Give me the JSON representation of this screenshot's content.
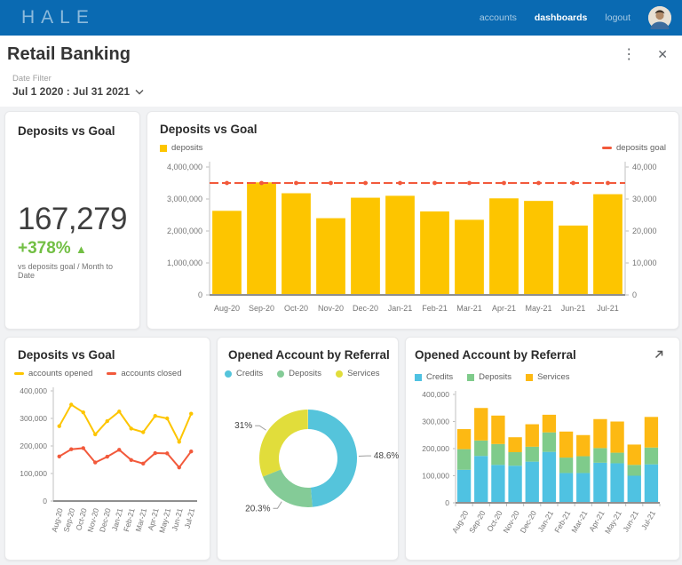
{
  "header": {
    "logo": "HALE",
    "nav": [
      {
        "label": "accounts",
        "active": false
      },
      {
        "label": "dashboards",
        "active": true
      },
      {
        "label": "logout",
        "active": false
      }
    ]
  },
  "page": {
    "title": "Retail Banking"
  },
  "filter": {
    "label": "Date Filter",
    "value": "Jul 1 2020 : Jul 31 2021"
  },
  "kpi": {
    "title": "Deposits vs Goal",
    "value": "167,279",
    "delta": "+378%",
    "delta_symbol": "▲",
    "delta_color": "#72BF44",
    "caption": "vs deposits goal / Month to Date"
  },
  "chart_data": [
    {
      "id": "deposits_bar",
      "type": "bar",
      "title": "Deposits vs Goal",
      "legend_layout": "split",
      "categories": [
        "Aug-20",
        "Sep-20",
        "Oct-20",
        "Nov-20",
        "Dec-20",
        "Jan-21",
        "Feb-21",
        "Mar-21",
        "Apr-21",
        "May-21",
        "Jun-21",
        "Jul-21"
      ],
      "series": [
        {
          "name": "deposits",
          "type": "bar",
          "marker": "square",
          "color": "#FDC500",
          "axis": "left",
          "values": [
            2630000,
            3520000,
            3180000,
            2400000,
            3040000,
            3100000,
            2610000,
            2350000,
            3020000,
            2940000,
            2170000,
            3150000
          ]
        },
        {
          "name": "deposits goal",
          "type": "line",
          "marker": "dash",
          "color": "#F2593B",
          "axis": "right",
          "values": [
            35000,
            35000,
            35000,
            35000,
            35000,
            35000,
            35000,
            35000,
            35000,
            35000,
            35000,
            35000
          ]
        }
      ],
      "y_left": {
        "min": 0,
        "max": 4000000,
        "step": 1000000
      },
      "y_right": {
        "min": 0,
        "max": 40000,
        "step": 10000
      },
      "grid": false
    },
    {
      "id": "accounts_line",
      "type": "line",
      "title": "Deposits vs Goal",
      "categories": [
        "Aug-20",
        "Sep-20",
        "Oct-20",
        "Nov-20",
        "Dec-20",
        "Jan-21",
        "Feb-21",
        "Mar-21",
        "Apr-21",
        "May-21",
        "Jun-21",
        "Jul-21"
      ],
      "series": [
        {
          "name": "accounts opened",
          "marker": "dash",
          "color": "#FDC500",
          "values": [
            272000,
            350000,
            322000,
            242000,
            290000,
            325000,
            263000,
            250000,
            309000,
            300000,
            215000,
            317000
          ]
        },
        {
          "name": "accounts closed",
          "marker": "dash",
          "color": "#F2593B",
          "values": [
            162000,
            188000,
            192000,
            140000,
            161000,
            186000,
            149000,
            136000,
            174000,
            173000,
            122000,
            180000
          ]
        }
      ],
      "y": {
        "min": 0,
        "max": 400000,
        "step": 100000
      },
      "grid": false
    },
    {
      "id": "referral_donut",
      "type": "pie",
      "title": "Opened Account by Referral",
      "slices": [
        {
          "name": "Credits",
          "pct": 48.6,
          "label": "48.6%",
          "marker": "dot",
          "color": "#55C4DB"
        },
        {
          "name": "Deposits",
          "pct": 20.3,
          "label": "20.3%",
          "marker": "dot",
          "color": "#84CB97"
        },
        {
          "name": "Services",
          "pct": 31.0,
          "label": "31%",
          "marker": "dot",
          "color": "#E1DD3B"
        }
      ]
    },
    {
      "id": "referral_stacked",
      "type": "stacked-bar",
      "title": "Opened Account by Referral",
      "categories": [
        "Aug-20",
        "Sep-20",
        "Oct-20",
        "Nov-20",
        "Dec-20",
        "Jan-21",
        "Feb-21",
        "Mar-21",
        "Apr-21",
        "May-21",
        "Jun-21",
        "Jul-21"
      ],
      "series": [
        {
          "name": "Credits",
          "marker": "square",
          "color": "#4FC2E2",
          "values": [
            122000,
            173000,
            140000,
            137000,
            152000,
            188000,
            110000,
            110000,
            148000,
            146000,
            100000,
            142000
          ]
        },
        {
          "name": "Deposits",
          "marker": "square",
          "color": "#7FCB8B",
          "values": [
            76000,
            57000,
            77000,
            50000,
            55000,
            72000,
            57000,
            62000,
            54000,
            39000,
            40000,
            62000
          ]
        },
        {
          "name": "Services",
          "marker": "square",
          "color": "#FDB913",
          "values": [
            74000,
            120000,
            105000,
            55000,
            83000,
            65000,
            96000,
            78000,
            107000,
            115000,
            75000,
            113000
          ]
        }
      ],
      "y": {
        "min": 0,
        "max": 400000,
        "step": 100000
      },
      "grid": false
    }
  ]
}
